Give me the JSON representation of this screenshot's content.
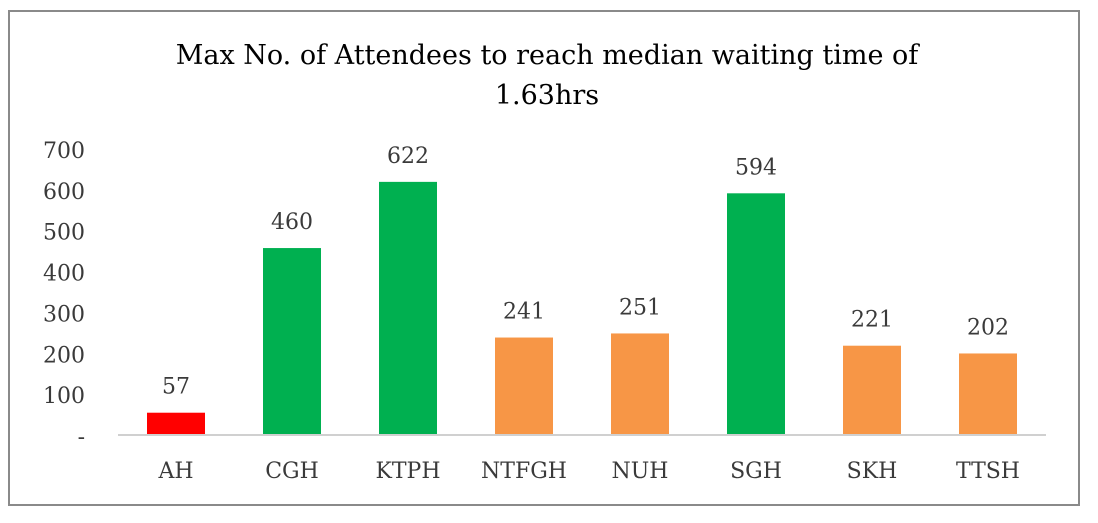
{
  "chart_data": {
    "type": "bar",
    "title": "Max No. of Attendees to reach median waiting time of\n1.63hrs",
    "categories": [
      "AH",
      "CGH",
      "KTPH",
      "NTFGH",
      "NUH",
      "SGH",
      "SKH",
      "TTSH"
    ],
    "values": [
      57,
      460,
      622,
      241,
      251,
      594,
      221,
      202
    ],
    "bar_colors": [
      "#ff0000",
      "#00b050",
      "#00b050",
      "#f79646",
      "#f79646",
      "#00b050",
      "#f79646",
      "#f79646"
    ],
    "ylim": [
      0,
      700
    ],
    "yticks": [
      0,
      100,
      200,
      300,
      400,
      500,
      600,
      700
    ],
    "ytick_labels": [
      "-",
      "100",
      "200",
      "300",
      "400",
      "500",
      "600",
      "700"
    ],
    "xlabel": "",
    "ylabel": "",
    "grid": false,
    "legend": "none",
    "data_labels": true
  }
}
